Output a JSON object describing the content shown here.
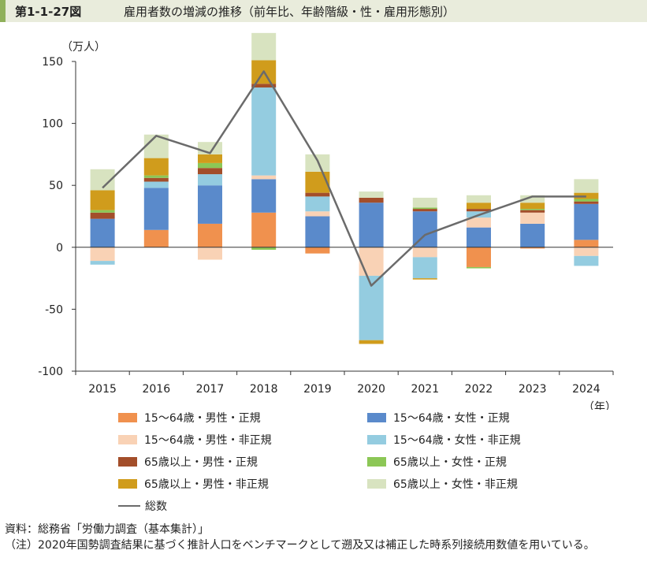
{
  "header": {
    "figure_number": "第1-1-27図",
    "title": "雇用者数の増減の推移（前年比、年齢階級・性・雇用形態別）"
  },
  "colors": {
    "header_bg": "#e9ecdc",
    "header_accent": "#8fb05a"
  },
  "chart_data": {
    "type": "bar",
    "stacked": true,
    "title": "雇用者数の増減の推移（前年比、年齢階級・性・雇用形態別）",
    "ylabel": "（万人）",
    "xlabel": "（年）",
    "ylim": [
      -100,
      150
    ],
    "yticks": [
      -100,
      -50,
      0,
      50,
      100,
      150
    ],
    "grid": false,
    "categories": [
      "2015",
      "2016",
      "2017",
      "2018",
      "2019",
      "2020",
      "2021",
      "2022",
      "2023",
      "2024"
    ],
    "series": [
      {
        "name": "15～64歳・男性・正規",
        "color": "#f0914e",
        "values": [
          0,
          14,
          19,
          28,
          -5,
          0,
          0,
          -16,
          -1,
          6
        ]
      },
      {
        "name": "15～64歳・女性・正規",
        "color": "#5a8acb",
        "values": [
          23,
          34,
          31,
          27,
          25,
          36,
          29,
          16,
          19,
          29
        ]
      },
      {
        "name": "15～64歳・男性・非正規",
        "color": "#f9d2b5",
        "values": [
          -11,
          0,
          -10,
          3,
          4,
          -23,
          -8,
          8,
          9,
          -7
        ]
      },
      {
        "name": "15～64歳・女性・非正規",
        "color": "#94cce0",
        "values": [
          -3,
          5,
          9,
          71,
          12,
          -52,
          -17,
          5,
          0,
          -8
        ]
      },
      {
        "name": "65歳以上・男性・正規",
        "color": "#a34e2a",
        "values": [
          5,
          3,
          5,
          3,
          3,
          4,
          2,
          2,
          2,
          2
        ]
      },
      {
        "name": "65歳以上・女性・正規",
        "color": "#8cc756",
        "values": [
          2,
          2,
          4,
          -2,
          0,
          0,
          1,
          -1,
          1,
          2
        ]
      },
      {
        "name": "65歳以上・男性・非正規",
        "color": "#d09c1c",
        "values": [
          16,
          14,
          7,
          19,
          17,
          -3,
          -1,
          5,
          5,
          5
        ]
      },
      {
        "name": "65歳以上・女性・非正規",
        "color": "#d8e3c0",
        "values": [
          17,
          19,
          10,
          22,
          14,
          5,
          8,
          6,
          6,
          11
        ]
      }
    ],
    "total": {
      "name": "総数",
      "color": "#6b6b6b",
      "values": [
        48,
        90,
        76,
        142,
        70,
        -31,
        10,
        26,
        41,
        41
      ]
    }
  },
  "source": {
    "line1": "資料：総務省「労働力調査（基本集計）」",
    "line2": "（注）2020年国勢調査結果に基づく推計人口をベンチマークとして遡及又は補正した時系列接続用数値を用いている。"
  }
}
